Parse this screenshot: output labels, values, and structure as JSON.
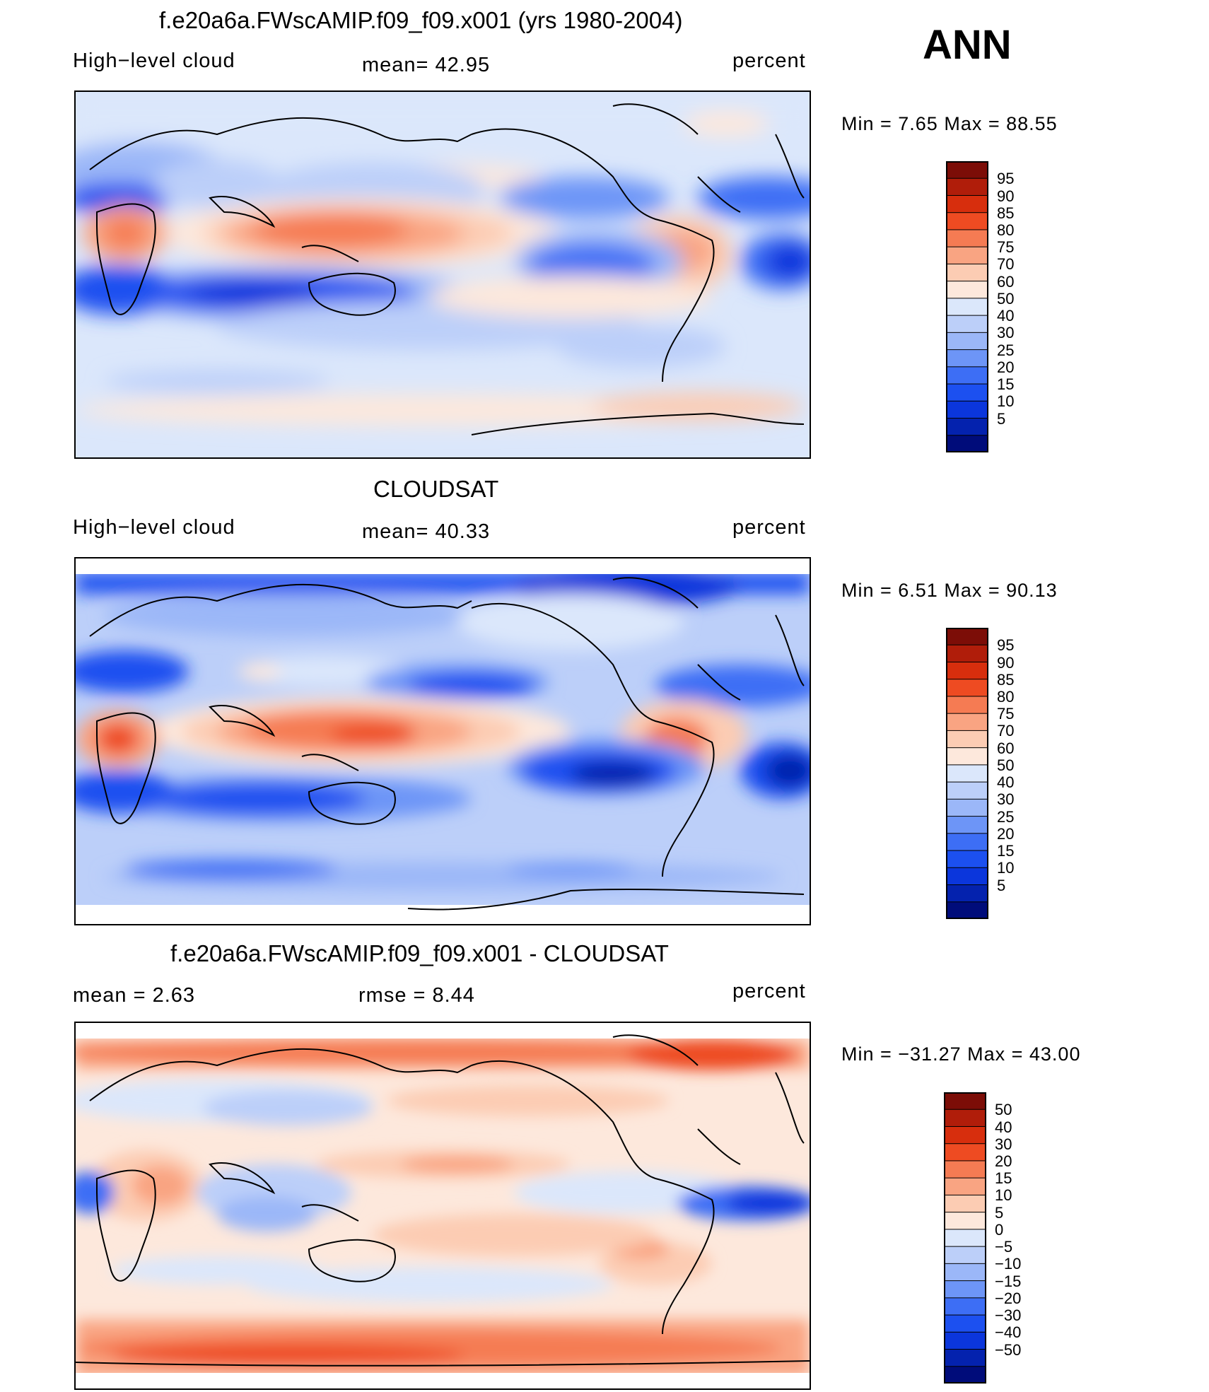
{
  "header": {
    "season": "ANN"
  },
  "palettes": {
    "abs": [
      "#000c7a",
      "#0422ae",
      "#0b36dc",
      "#1c50f0",
      "#3d6ef5",
      "#6d95f7",
      "#9bb7f8",
      "#bccff9",
      "#dbe7fb",
      "#fde8dc",
      "#fcccb3",
      "#f9a482",
      "#f57b53",
      "#ee4b22",
      "#d72e0d",
      "#b01d0a",
      "#7c0d07"
    ],
    "diff": [
      "#000c7a",
      "#0422ae",
      "#0b36dc",
      "#1c50f0",
      "#3d6ef5",
      "#6d95f7",
      "#9bb7f8",
      "#bccff9",
      "#dbe7fb",
      "#fde8dc",
      "#fcccb3",
      "#f9a482",
      "#f57b53",
      "#ee4b22",
      "#d72e0d",
      "#b01d0a",
      "#7c0d07"
    ]
  },
  "panels": [
    {
      "id": "model",
      "title": "f.e20a6a.FWscAMIP.f09_f09.x001 (yrs 1980-2004)",
      "left_label": "High−level cloud",
      "center_label": "mean=   42.95",
      "right_label": "percent",
      "minmax": "Min =    7.65  Max =    88.55"
    },
    {
      "id": "obs",
      "title": "CLOUDSAT",
      "left_label": "High−level cloud",
      "center_label": "mean=   40.33",
      "right_label": "percent",
      "minmax": "Min =    6.51  Max =    90.13"
    },
    {
      "id": "diff",
      "title": "f.e20a6a.FWscAMIP.f09_f09.x001 - CLOUDSAT",
      "left_label": "mean  =     2.63",
      "center_label": "rmse  =     8.44",
      "right_label": "percent",
      "minmax": "Min  = −31.27  Max  =    43.00"
    }
  ],
  "chart_data": [
    {
      "type": "heatmap",
      "title": "f.e20a6a.FWscAMIP.f09_f09.x001 (yrs 1980-2004)",
      "variable": "High-level cloud",
      "units": "percent",
      "season": "ANN",
      "mean": 42.95,
      "min": 7.65,
      "max": 88.55,
      "x_range": [
        0,
        360
      ],
      "y_range": [
        -90,
        90
      ],
      "colorbar_levels": [
        "95",
        "90",
        "85",
        "80",
        "75",
        "70",
        "60",
        "50",
        "40",
        "30",
        "25",
        "20",
        "15",
        "10",
        "5"
      ],
      "features": [
        {
          "lon": 130,
          "lat": 3,
          "value": 80
        },
        {
          "lon": 22,
          "lat": 2,
          "value": 78
        },
        {
          "lon": 300,
          "lat": -5,
          "value": 70
        },
        {
          "lon": 80,
          "lat": -22,
          "value": 10
        },
        {
          "lon": 255,
          "lat": -15,
          "value": 12
        },
        {
          "lon": 345,
          "lat": -15,
          "value": 12
        },
        {
          "lon": 15,
          "lat": 28,
          "value": 15
        },
        {
          "lon": 205,
          "lat": 25,
          "value": 30
        },
        {
          "lon": 200,
          "lat": -42,
          "value": 45
        },
        {
          "lon": 200,
          "lat": 58,
          "value": 45
        }
      ]
    },
    {
      "type": "heatmap",
      "title": "CLOUDSAT",
      "variable": "High-level cloud",
      "units": "percent",
      "season": "ANN",
      "mean": 40.33,
      "min": 6.51,
      "max": 90.13,
      "x_range": [
        0,
        360
      ],
      "y_range": [
        -90,
        90
      ],
      "colorbar_levels": [
        "95",
        "90",
        "85",
        "80",
        "75",
        "70",
        "60",
        "50",
        "40",
        "30",
        "25",
        "20",
        "15",
        "10",
        "5"
      ],
      "features": [
        {
          "lon": 130,
          "lat": 3,
          "value": 85
        },
        {
          "lon": 22,
          "lat": 2,
          "value": 78
        },
        {
          "lon": 295,
          "lat": -3,
          "value": 78
        },
        {
          "lon": 80,
          "lat": -22,
          "value": 12
        },
        {
          "lon": 250,
          "lat": -15,
          "value": 10
        },
        {
          "lon": 345,
          "lat": -15,
          "value": 10
        },
        {
          "lon": 290,
          "lat": 80,
          "value": 15
        },
        {
          "lon": 200,
          "lat": 22,
          "value": 20
        }
      ]
    },
    {
      "type": "heatmap",
      "title": "f.e20a6a.FWscAMIP.f09_f09.x001 - CLOUDSAT",
      "variable": "High-level cloud difference",
      "units": "percent",
      "season": "ANN",
      "mean": 2.63,
      "rmse": 8.44,
      "min": -31.27,
      "max": 43.0,
      "x_range": [
        0,
        360
      ],
      "y_range": [
        -90,
        90
      ],
      "colorbar_levels": [
        "50",
        "40",
        "30",
        "20",
        "15",
        "10",
        "5",
        "0",
        "−5",
        "−10",
        "−15",
        "−20",
        "−30",
        "−40",
        "−50"
      ],
      "features": [
        {
          "lon": 180,
          "lat": 80,
          "value": 15
        },
        {
          "lon": 180,
          "lat": -70,
          "value": 15
        },
        {
          "lon": 340,
          "lat": -15,
          "value": -20
        },
        {
          "lon": 60,
          "lat": 35,
          "value": -10
        },
        {
          "lon": 190,
          "lat": 20,
          "value": 10
        },
        {
          "lon": 280,
          "lat": -20,
          "value": 10
        }
      ]
    }
  ]
}
